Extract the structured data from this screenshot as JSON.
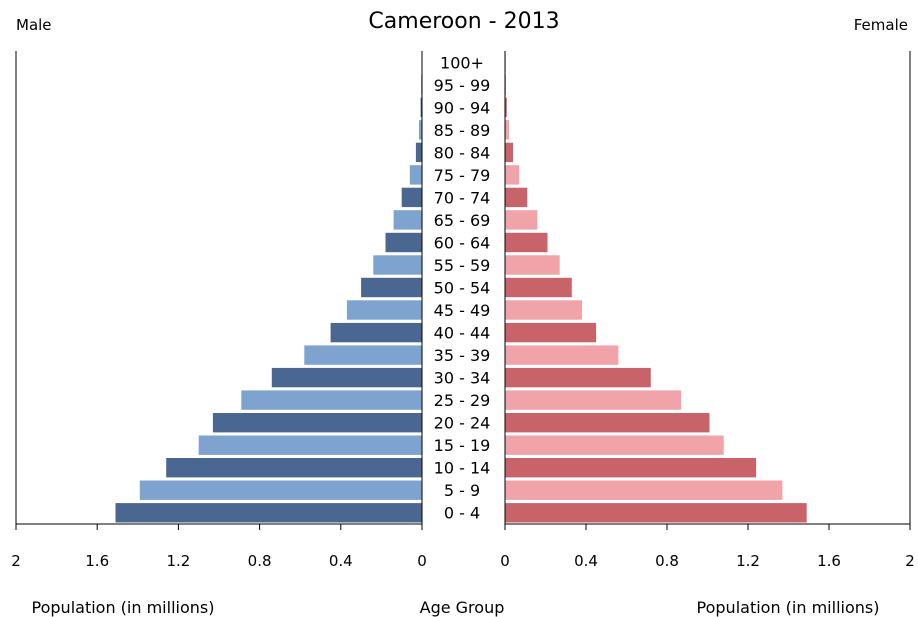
{
  "chart_data": {
    "type": "bar",
    "title": "Cameroon - 2013",
    "left_label": "Male",
    "right_label": "Female",
    "center_axis_title": "Age Group",
    "xlabel_left": "Population (in millions)",
    "xlabel_right": "Population (in millions)",
    "xlim": [
      0,
      2
    ],
    "xticks": [
      "0",
      "0.4",
      "0.8",
      "1.2",
      "1.6",
      "2"
    ],
    "categories": [
      "0 - 4",
      "5 - 9",
      "10 - 14",
      "15 - 19",
      "20 - 24",
      "25 - 29",
      "30 - 34",
      "35 - 39",
      "40 - 44",
      "45 - 49",
      "50 - 54",
      "55 - 59",
      "60 - 64",
      "65 - 69",
      "70 - 74",
      "75 - 79",
      "80 - 84",
      "85 - 89",
      "90 - 94",
      "95 - 99",
      "100+"
    ],
    "series": [
      {
        "name": "Male",
        "values": [
          1.51,
          1.39,
          1.26,
          1.1,
          1.03,
          0.89,
          0.74,
          0.58,
          0.45,
          0.37,
          0.3,
          0.24,
          0.18,
          0.14,
          0.1,
          0.06,
          0.03,
          0.015,
          0.007,
          0.004,
          0.002
        ],
        "colors": [
          "#4a6791",
          "#7ea3cf"
        ]
      },
      {
        "name": "Female",
        "values": [
          1.49,
          1.37,
          1.24,
          1.08,
          1.01,
          0.87,
          0.72,
          0.56,
          0.45,
          0.38,
          0.33,
          0.27,
          0.21,
          0.16,
          0.11,
          0.07,
          0.04,
          0.02,
          0.009,
          0.005,
          0.003
        ],
        "colors": [
          "#c9636a",
          "#f0a3a8"
        ]
      }
    ],
    "grid": false
  }
}
